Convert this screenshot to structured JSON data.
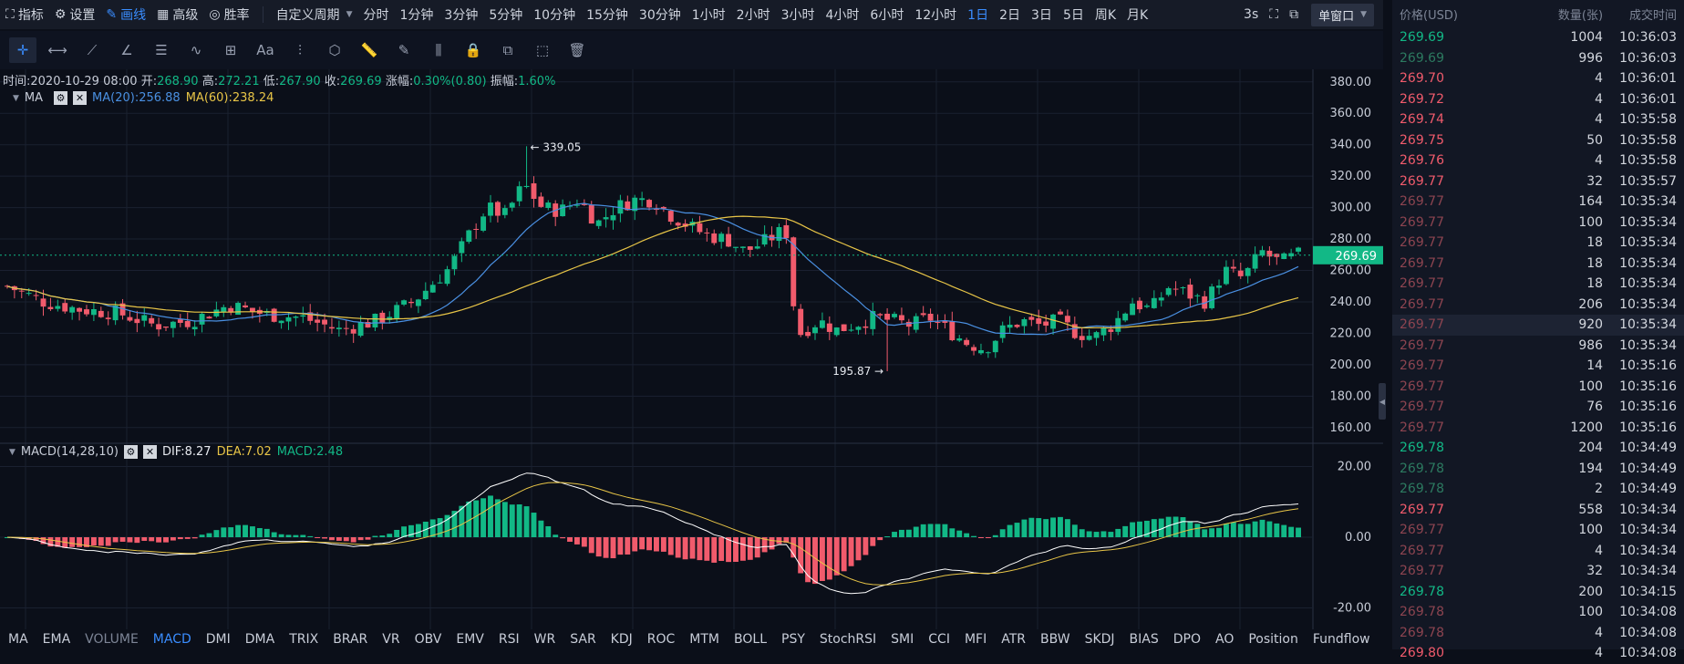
{
  "toolbar": {
    "indicator": "指标",
    "settings": "设置",
    "draw": "画线",
    "advanced": "高级",
    "winrate": "胜率",
    "custom_period": "自定义周期",
    "periods": [
      "分时",
      "1分钟",
      "3分钟",
      "5分钟",
      "10分钟",
      "15分钟",
      "30分钟",
      "1小时",
      "2小时",
      "3小时",
      "4小时",
      "6小时",
      "12小时",
      "1日",
      "2日",
      "3日",
      "5日",
      "周K",
      "月K"
    ],
    "active_period": "1日",
    "interval": "3s",
    "window_mode": "单窗口"
  },
  "drawing_tools": [
    "crosshair-icon",
    "horizontal-line-icon",
    "trend-line-icon",
    "angle-icon",
    "parallel-lines-icon",
    "wave-icon",
    "grid-icon",
    "text-icon",
    "fib-icon",
    "shape-icon",
    "ruler-icon",
    "pencil-icon",
    "measure-icon",
    "lock-icon",
    "copy-icon",
    "screenshot-icon",
    "trash-icon"
  ],
  "info": {
    "time_label": "时间:",
    "time": "2020-10-29 08:00",
    "open_label": "开:",
    "open": "268.90",
    "high_label": "高:",
    "high": "272.21",
    "low_label": "低:",
    "low": "267.90",
    "close_label": "收:",
    "close": "269.69",
    "change_label": "涨幅:",
    "change": "0.30%(0.80)",
    "amp_label": "振幅:",
    "amp": "1.60%"
  },
  "ma": {
    "label": "MA",
    "ma20": "MA(20):256.88",
    "ma60": "MA(60):238.24"
  },
  "macd": {
    "label": "MACD(14,28,10)",
    "dif": "DIF:8.27",
    "dea": "DEA:7.02",
    "macd": "MACD:2.48"
  },
  "chart_data": {
    "type": "candlestick",
    "price_axis": [
      "380.00",
      "360.00",
      "340.00",
      "320.00",
      "300.00",
      "280.00",
      "260.00",
      "240.00",
      "220.00",
      "200.00",
      "180.00",
      "160.00"
    ],
    "ylim": [
      150,
      388
    ],
    "current_price": "269.69",
    "high_marker": "← 339.05",
    "low_marker": "195.87 →",
    "macd_axis": [
      "20.00",
      "0.00",
      "-20.00"
    ],
    "macd_ylim": [
      -24,
      24
    ],
    "colors": {
      "up": "#12b886",
      "down": "#f15b6c",
      "ma20": "#4a90e2",
      "ma60": "#e8c547",
      "dif": "#ffffff",
      "dea": "#e8c547"
    }
  },
  "indicator_tabs": [
    "MA",
    "EMA",
    "VOLUME",
    "MACD",
    "DMI",
    "DMA",
    "TRIX",
    "BRAR",
    "VR",
    "OBV",
    "EMV",
    "RSI",
    "WR",
    "SAR",
    "KDJ",
    "ROC",
    "MTM",
    "BOLL",
    "PSY",
    "StochRSI",
    "SMI",
    "CCI",
    "MFI",
    "ATR",
    "BBW",
    "SKDJ",
    "BIAS",
    "DPO",
    "AO",
    "Position",
    "Fundflow"
  ],
  "trades_header": {
    "price": "价格(USD)",
    "qty": "数量(张)",
    "time": "成交时间"
  },
  "trades": [
    {
      "price": "269.69",
      "qty": "1004",
      "time": "10:36:03",
      "side": "buy"
    },
    {
      "price": "269.69",
      "qty": "996",
      "time": "10:36:03",
      "side": "buy-dim"
    },
    {
      "price": "269.70",
      "qty": "4",
      "time": "10:36:01",
      "side": "sell"
    },
    {
      "price": "269.72",
      "qty": "4",
      "time": "10:36:01",
      "side": "sell"
    },
    {
      "price": "269.74",
      "qty": "4",
      "time": "10:35:58",
      "side": "sell"
    },
    {
      "price": "269.75",
      "qty": "50",
      "time": "10:35:58",
      "side": "sell"
    },
    {
      "price": "269.76",
      "qty": "4",
      "time": "10:35:58",
      "side": "sell"
    },
    {
      "price": "269.77",
      "qty": "32",
      "time": "10:35:57",
      "side": "sell"
    },
    {
      "price": "269.77",
      "qty": "164",
      "time": "10:35:34",
      "side": "sell-dim"
    },
    {
      "price": "269.77",
      "qty": "100",
      "time": "10:35:34",
      "side": "sell-dim"
    },
    {
      "price": "269.77",
      "qty": "18",
      "time": "10:35:34",
      "side": "sell-dim"
    },
    {
      "price": "269.77",
      "qty": "18",
      "time": "10:35:34",
      "side": "sell-dim"
    },
    {
      "price": "269.77",
      "qty": "18",
      "time": "10:35:34",
      "side": "sell-dim"
    },
    {
      "price": "269.77",
      "qty": "206",
      "time": "10:35:34",
      "side": "sell-dim"
    },
    {
      "price": "269.77",
      "qty": "920",
      "time": "10:35:34",
      "side": "sell-dim",
      "highlight": true
    },
    {
      "price": "269.77",
      "qty": "986",
      "time": "10:35:34",
      "side": "sell-dim"
    },
    {
      "price": "269.77",
      "qty": "14",
      "time": "10:35:16",
      "side": "sell-dim"
    },
    {
      "price": "269.77",
      "qty": "100",
      "time": "10:35:16",
      "side": "sell-dim"
    },
    {
      "price": "269.77",
      "qty": "76",
      "time": "10:35:16",
      "side": "sell-dim"
    },
    {
      "price": "269.77",
      "qty": "1200",
      "time": "10:35:16",
      "side": "sell-dim"
    },
    {
      "price": "269.78",
      "qty": "204",
      "time": "10:34:49",
      "side": "buy"
    },
    {
      "price": "269.78",
      "qty": "194",
      "time": "10:34:49",
      "side": "buy-dim"
    },
    {
      "price": "269.78",
      "qty": "2",
      "time": "10:34:49",
      "side": "buy-dim"
    },
    {
      "price": "269.77",
      "qty": "558",
      "time": "10:34:34",
      "side": "sell"
    },
    {
      "price": "269.77",
      "qty": "100",
      "time": "10:34:34",
      "side": "sell-dim"
    },
    {
      "price": "269.77",
      "qty": "4",
      "time": "10:34:34",
      "side": "sell-dim"
    },
    {
      "price": "269.77",
      "qty": "32",
      "time": "10:34:34",
      "side": "sell-dim"
    },
    {
      "price": "269.78",
      "qty": "200",
      "time": "10:34:15",
      "side": "buy"
    },
    {
      "price": "269.78",
      "qty": "100",
      "time": "10:34:08",
      "side": "sell-dim"
    },
    {
      "price": "269.78",
      "qty": "4",
      "time": "10:34:08",
      "side": "sell-dim"
    },
    {
      "price": "269.80",
      "qty": "4",
      "time": "10:34:08",
      "side": "sell"
    }
  ]
}
